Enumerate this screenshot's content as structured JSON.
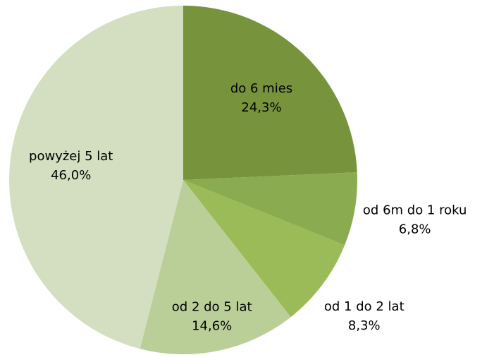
{
  "chart_data": {
    "type": "pie",
    "categories": [
      "do 6 mies",
      "od 6m do 1 roku",
      "od 1 do 2 lat",
      "od 2 do 5 lat",
      "powyżej 5 lat"
    ],
    "values": [
      24.3,
      6.8,
      8.3,
      14.6,
      46.0
    ],
    "value_labels": [
      "24,3%",
      "6,8%",
      "8,3%",
      "14,6%",
      "46,0%"
    ],
    "colors": [
      "#77933c",
      "#8aab50",
      "#9bbb59",
      "#bacf97",
      "#d3dfc0"
    ]
  }
}
